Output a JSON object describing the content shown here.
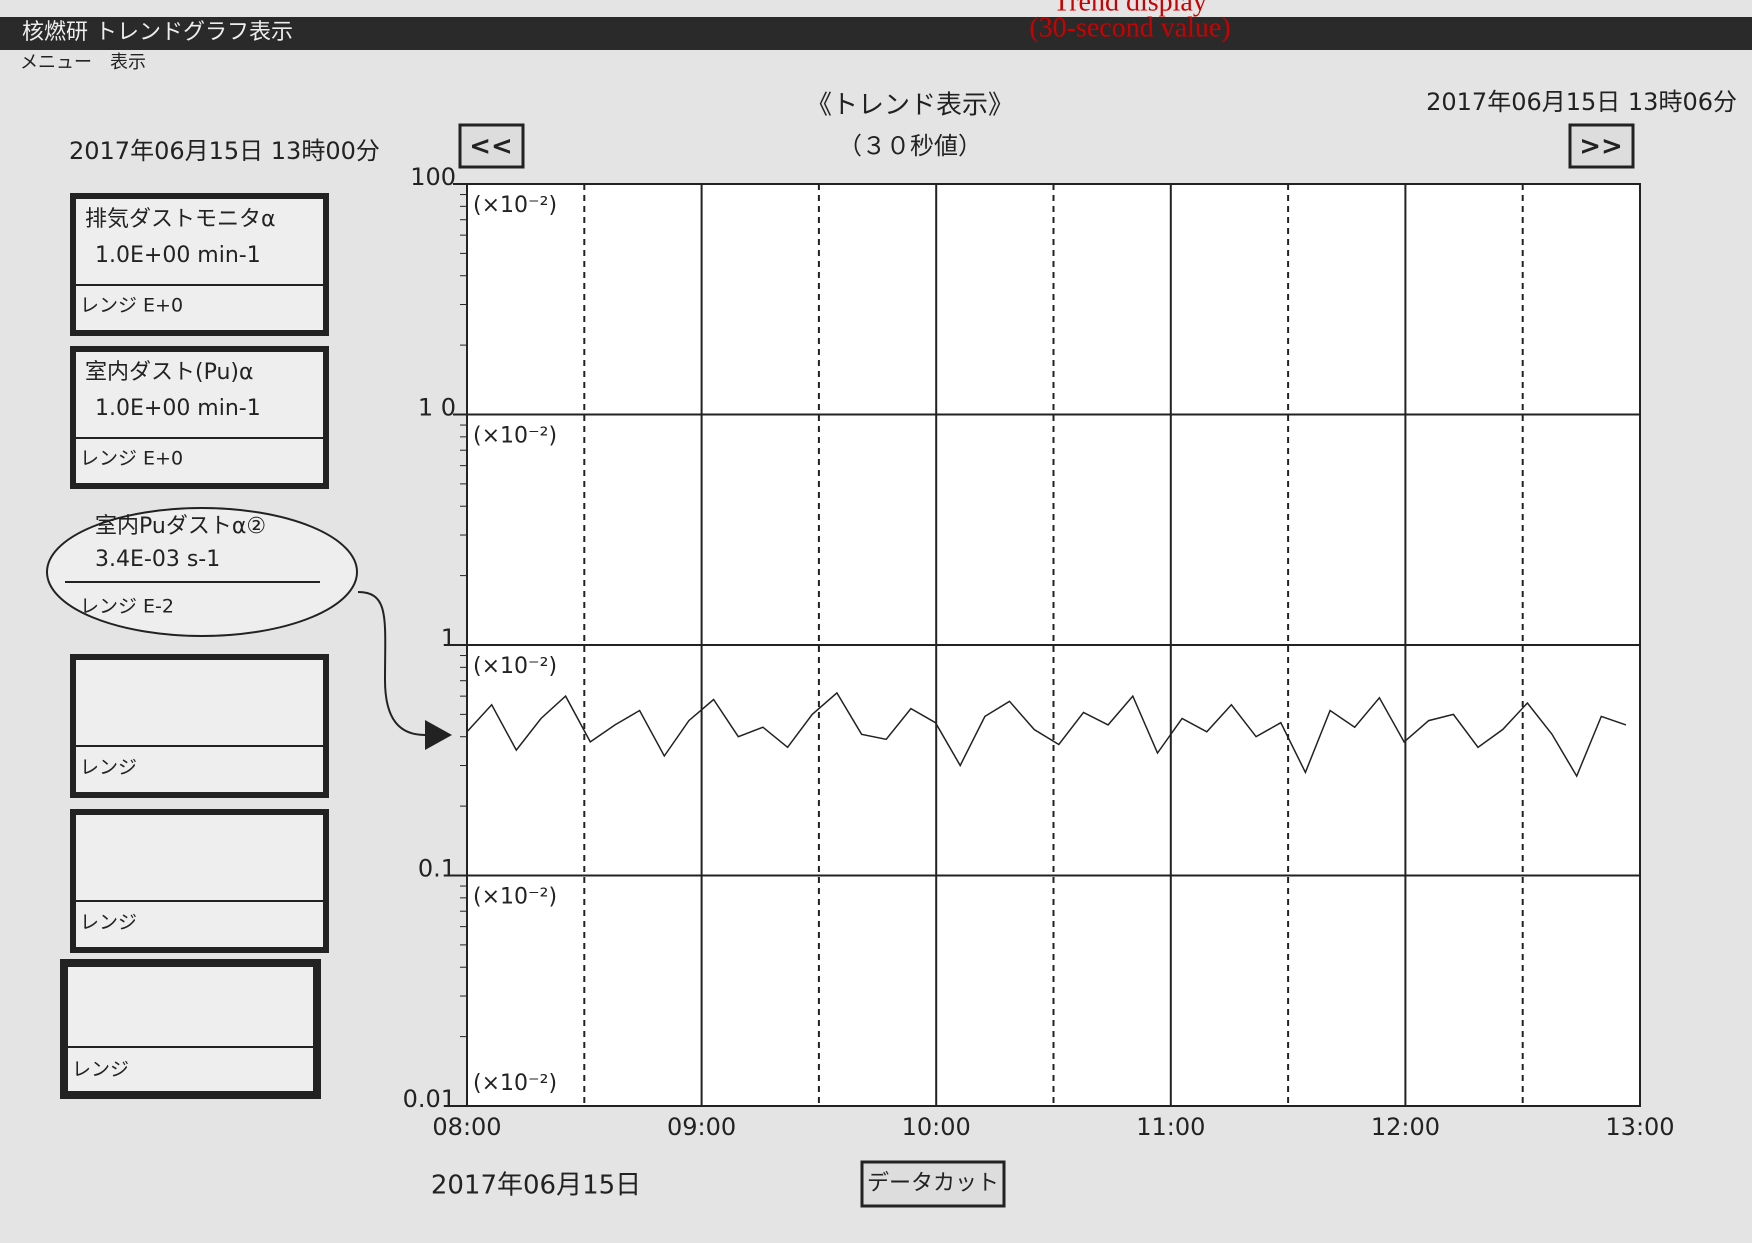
{
  "window": {
    "title": "核燃研 トレンドグラフ表示",
    "menu": [
      "メニュー",
      "表示"
    ]
  },
  "annotations": [
    "Trend display",
    "(30-second value)"
  ],
  "header": {
    "title": "《トレンド表示》",
    "subtitle": "（３０秒値）",
    "start": "2017年06月15日 13時00分",
    "end": "2017年06月15日 13時06分",
    "prev_button": "<<",
    "next_button": ">>"
  },
  "channels": [
    {
      "name": "排気ダストモニタα",
      "reading": "1.0E+00 min-1",
      "range": "レンジ E+0"
    },
    {
      "name": "室内ダスト(Pu)α",
      "reading": "1.0E+00 min-1",
      "range": "レンジ E+0"
    },
    {
      "name": "室内Puダストα②",
      "reading": "3.4E-03 s-1",
      "range": "レンジ E-2"
    },
    {
      "range": "レンジ"
    },
    {
      "range": "レンジ"
    },
    {
      "range": "レンジ"
    }
  ],
  "chart_data": {
    "type": "line",
    "log_scale": true,
    "grid": true,
    "ylim": [
      0.01,
      100
    ],
    "yticks": [
      100,
      {
        "value": 10,
        "label": "1 0"
      },
      1,
      0.1,
      0.01
    ],
    "band_label": "(×10⁻²)",
    "xticks": [
      "08:00",
      "09:00",
      "10:00",
      "11:00",
      "12:00",
      "13:00"
    ],
    "series": [
      {
        "color": "#222222",
        "values": [
          0.42,
          0.55,
          0.35,
          0.48,
          0.6,
          0.38,
          0.45,
          0.52,
          0.33,
          0.47,
          0.58,
          0.4,
          0.44,
          0.36,
          0.5,
          0.62,
          0.41,
          0.39,
          0.53,
          0.46,
          0.3,
          0.49,
          0.57,
          0.43,
          0.37,
          0.51,
          0.45,
          0.6,
          0.34,
          0.48,
          0.42,
          0.55,
          0.4,
          0.46,
          0.28,
          0.52,
          0.44,
          0.59,
          0.38,
          0.47,
          0.5,
          0.36,
          0.43,
          0.56,
          0.41,
          0.27,
          0.49,
          0.45
        ]
      }
    ]
  },
  "footer": {
    "date": "2017年06月15日",
    "button": "データカット"
  }
}
